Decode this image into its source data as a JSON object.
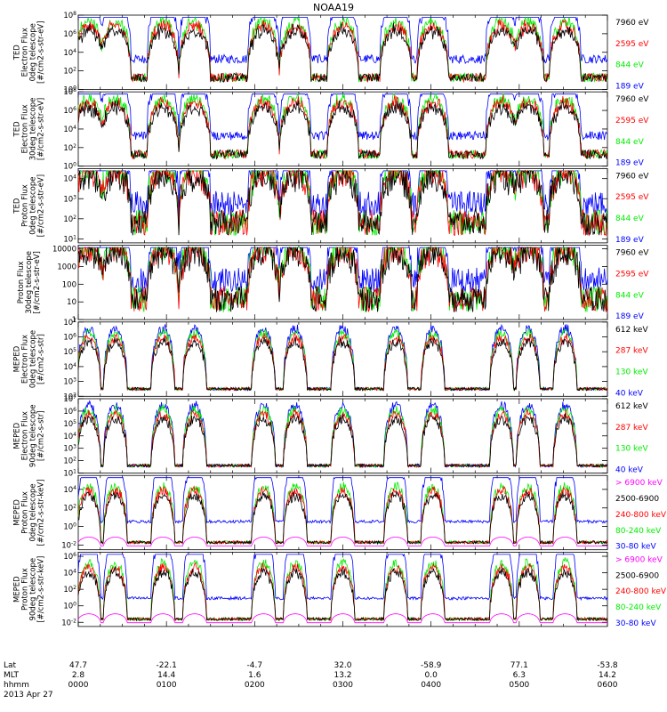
{
  "title": "NOAA19",
  "date_label": "2013 Apr 27",
  "colors": {
    "blue": "#0000ff",
    "red": "#ff0000",
    "green": "#00ee00",
    "black": "#000000",
    "magenta": "#ff00ff"
  },
  "footer": {
    "rows": [
      {
        "label": "Lat",
        "values": [
          "47.7",
          "-22.1",
          "-4.7",
          "32.0",
          "-58.9",
          "77.1",
          "-53.8"
        ]
      },
      {
        "label": "MLT",
        "values": [
          "2.8",
          "14.4",
          "1.6",
          "13.2",
          "0.0",
          "6.3",
          "14.2"
        ]
      },
      {
        "label": "hhmm",
        "values": [
          "0000",
          "0100",
          "0200",
          "0300",
          "0400",
          "0500",
          "0600"
        ]
      }
    ]
  },
  "chart_data": [
    {
      "type": "line",
      "instrument": "TED",
      "ylabel": [
        "TED",
        "Electron Flux",
        "0deg telescope",
        "[#/cm2-s-str-eV]"
      ],
      "yticks": [
        "10^0",
        "10^2",
        "10^4",
        "10^6",
        "10^8"
      ],
      "ylim_log": [
        0,
        8
      ],
      "legend": [
        {
          "label": "7960 eV",
          "color": "black"
        },
        {
          "label": "2595 eV",
          "color": "red"
        },
        {
          "label": "844 eV",
          "color": "green"
        },
        {
          "label": "189 eV",
          "color": "blue"
        }
      ]
    },
    {
      "type": "line",
      "instrument": "TED",
      "ylabel": [
        "TED",
        "Electron Flux",
        "30deg telescope",
        "[#/cm2-s-str-eV]"
      ],
      "yticks": [
        "10^0",
        "10^2",
        "10^4",
        "10^6",
        "10^8"
      ],
      "ylim_log": [
        0,
        8
      ],
      "legend": [
        {
          "label": "7960 eV",
          "color": "black"
        },
        {
          "label": "2595 eV",
          "color": "red"
        },
        {
          "label": "844 eV",
          "color": "green"
        },
        {
          "label": "189 eV",
          "color": "blue"
        }
      ]
    },
    {
      "type": "line",
      "instrument": "TED",
      "ylabel": [
        "TED",
        "Proton Flux",
        "0deg telescope",
        "[#/cm2-s-str-eV]"
      ],
      "yticks": [
        "10^1",
        "10^2",
        "10^3",
        "10^4"
      ],
      "ylim_log": [
        0.8,
        4.5
      ],
      "legend": [
        {
          "label": "7960 eV",
          "color": "black"
        },
        {
          "label": "2595 eV",
          "color": "red"
        },
        {
          "label": "844 eV",
          "color": "green"
        },
        {
          "label": "189 eV",
          "color": "blue"
        }
      ]
    },
    {
      "type": "line",
      "instrument": "TED",
      "ylabel": [
        "Proton Flux",
        "30deg telescope",
        "[#/cm2-s-str-eV]"
      ],
      "yticks": [
        "1",
        "10",
        "100",
        "1000",
        "10000"
      ],
      "ylim_log": [
        0,
        4.2
      ],
      "legend": [
        {
          "label": "7960 eV",
          "color": "black"
        },
        {
          "label": "2595 eV",
          "color": "red"
        },
        {
          "label": "844 eV",
          "color": "green"
        },
        {
          "label": "189 eV",
          "color": "blue"
        }
      ]
    },
    {
      "type": "line",
      "instrument": "MEPED",
      "ylabel": [
        "MEPED",
        "Electron Flux",
        "0deg telescope",
        "[#/cm2-s-str]"
      ],
      "yticks": [
        "10^2",
        "10^3",
        "10^4",
        "10^5",
        "10^6",
        "10^7"
      ],
      "ylim_log": [
        2,
        7
      ],
      "legend": [
        {
          "label": "612 keV",
          "color": "black"
        },
        {
          "label": "287 keV",
          "color": "red"
        },
        {
          "label": "130 keV",
          "color": "green"
        },
        {
          "label": "40 keV",
          "color": "blue"
        }
      ]
    },
    {
      "type": "line",
      "instrument": "MEPED",
      "ylabel": [
        "MEPED",
        "Electron Flux",
        "90deg telescope",
        "[#/cm2-s-str]"
      ],
      "yticks": [
        "10^1",
        "10^2",
        "10^3",
        "10^4",
        "10^5",
        "10^6",
        "10^7"
      ],
      "ylim_log": [
        1,
        7
      ],
      "legend": [
        {
          "label": "612 keV",
          "color": "black"
        },
        {
          "label": "287 keV",
          "color": "red"
        },
        {
          "label": "130 keV",
          "color": "green"
        },
        {
          "label": "40 keV",
          "color": "blue"
        }
      ]
    },
    {
      "type": "line",
      "instrument": "MEPED",
      "ylabel": [
        "MEPED",
        "Proton Flux",
        "0deg telescope",
        "[#/cm2-s-str-keV]"
      ],
      "yticks": [
        "10^-2",
        "10^0",
        "10^2",
        "10^4"
      ],
      "ylim_log": [
        -2.5,
        5.5
      ],
      "legend": [
        {
          "label": "> 6900 keV",
          "color": "magenta"
        },
        {
          "label": "2500-6900",
          "color": "black"
        },
        {
          "label": "240-800 keV",
          "color": "red"
        },
        {
          "label": "80-240 keV",
          "color": "green"
        },
        {
          "label": "30-80 keV",
          "color": "blue"
        }
      ]
    },
    {
      "type": "line",
      "instrument": "MEPED",
      "ylabel": [
        "MEPED",
        "Proton Flux",
        "90deg telescope",
        "[#/cm2-s-str-keV]"
      ],
      "yticks": [
        "10^-2",
        "10^0",
        "10^2",
        "10^4",
        "10^6"
      ],
      "ylim_log": [
        -2.5,
        6.5
      ],
      "legend": [
        {
          "label": "> 6900 keV",
          "color": "magenta"
        },
        {
          "label": "2500-6900",
          "color": "black"
        },
        {
          "label": "240-800 keV",
          "color": "red"
        },
        {
          "label": "80-240 keV",
          "color": "green"
        },
        {
          "label": "30-80 keV",
          "color": "blue"
        }
      ]
    }
  ]
}
